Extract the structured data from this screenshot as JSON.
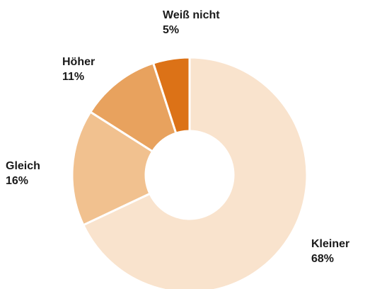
{
  "chart_data": {
    "type": "donut",
    "categories": [
      "Kleiner",
      "Gleich",
      "Höher",
      "Weiß nicht"
    ],
    "values": [
      68,
      16,
      11,
      5
    ],
    "value_labels": [
      "68%",
      "16%",
      "11%",
      "5%"
    ],
    "colors": [
      "#f9e3cd",
      "#f1c18f",
      "#e8a25e",
      "#dc7217"
    ]
  }
}
